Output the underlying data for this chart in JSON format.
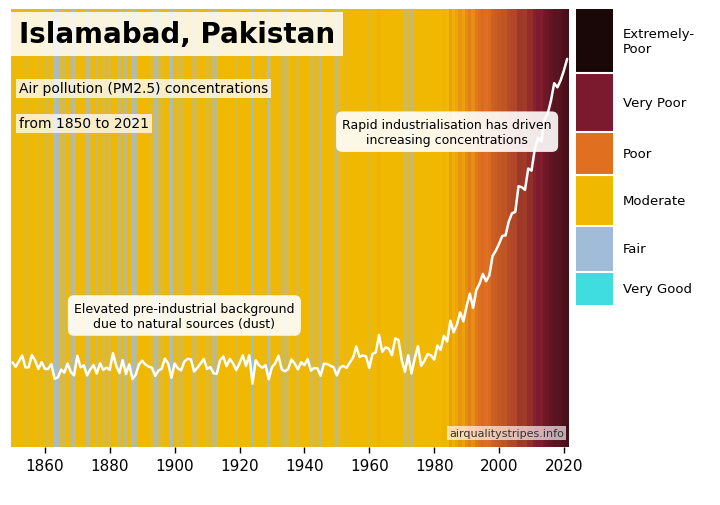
{
  "title": "Islamabad, Pakistan",
  "subtitle1": "Air pollution (PM2.5) concentrations",
  "subtitle2": "from 1850 to 2021",
  "watermark": "airqualitystripes.info",
  "year_start": 1850,
  "year_end": 2021,
  "x_ticks": [
    1860,
    1880,
    1900,
    1920,
    1940,
    1960,
    1980,
    2000,
    2020
  ],
  "annotation1": "Elevated pre-industrial background\ndue to natural sources (dust)",
  "annotation2": "Rapid industrialisation has driven\nincreasing concentrations",
  "legend_items": [
    {
      "label": "Extremely-\nPoor",
      "color": "#1a0808"
    },
    {
      "label": "Very Poor",
      "color": "#7b1a2e"
    },
    {
      "label": "Poor",
      "color": "#e07020"
    },
    {
      "label": "Moderate",
      "color": "#f0b800"
    },
    {
      "label": "Fair",
      "color": "#a0bcd8"
    },
    {
      "label": "Very Good",
      "color": "#40dde0"
    }
  ],
  "background_color": "#ffffff",
  "line_color": "#ffffff",
  "legend_heights": [
    0.145,
    0.135,
    0.1,
    0.115,
    0.105,
    0.075
  ]
}
